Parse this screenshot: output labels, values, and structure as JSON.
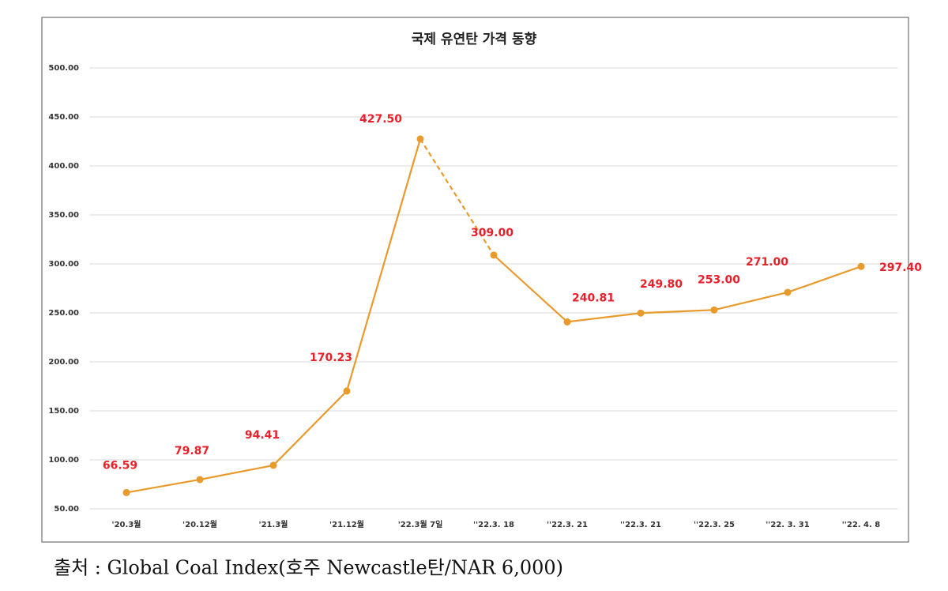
{
  "chart_data": {
    "type": "line",
    "title": "국제 유연탄 가격 동향",
    "categories": [
      "'20.3월",
      "'20.12월",
      "'21.3월",
      "'21.12월",
      "'22.3월 7일",
      "''22.3. 18",
      "''22.3. 21",
      "''22.3. 21",
      "''22.3. 25",
      "''22. 3. 31",
      "''22. 4. 8"
    ],
    "series": [
      {
        "name": "Global Coal Index",
        "color": "#e89a2c",
        "values": [
          66.59,
          79.87,
          94.41,
          170.23,
          427.5,
          309,
          240.81,
          249.8,
          253,
          271,
          297.4
        ],
        "value_labels": [
          "66.59",
          "79.87",
          "94.41",
          "170.23",
          "427.50",
          "309.00",
          "240.81",
          "249.80",
          "253.00",
          "271.00",
          "297.40"
        ]
      }
    ],
    "value_label_color": "#e8202a",
    "dashed_segments": [
      4
    ],
    "ylim": [
      50,
      500
    ],
    "yticks": [
      {
        "value": 50,
        "label": "50.00"
      },
      {
        "value": 100,
        "label": "100.00"
      },
      {
        "value": 150,
        "label": "150.00"
      },
      {
        "value": 200,
        "label": "200.00"
      },
      {
        "value": 250,
        "label": "250.00"
      },
      {
        "value": 300,
        "label": "300.00"
      },
      {
        "value": 350,
        "label": "350.00"
      },
      {
        "value": 400,
        "label": "400.00"
      },
      {
        "value": 450,
        "label": "450.00"
      },
      {
        "value": 500,
        "label": "500.00"
      }
    ],
    "grid": true,
    "source": "출처 : Global Coal Index(호주 Newcastle탄/NAR 6,000)"
  }
}
